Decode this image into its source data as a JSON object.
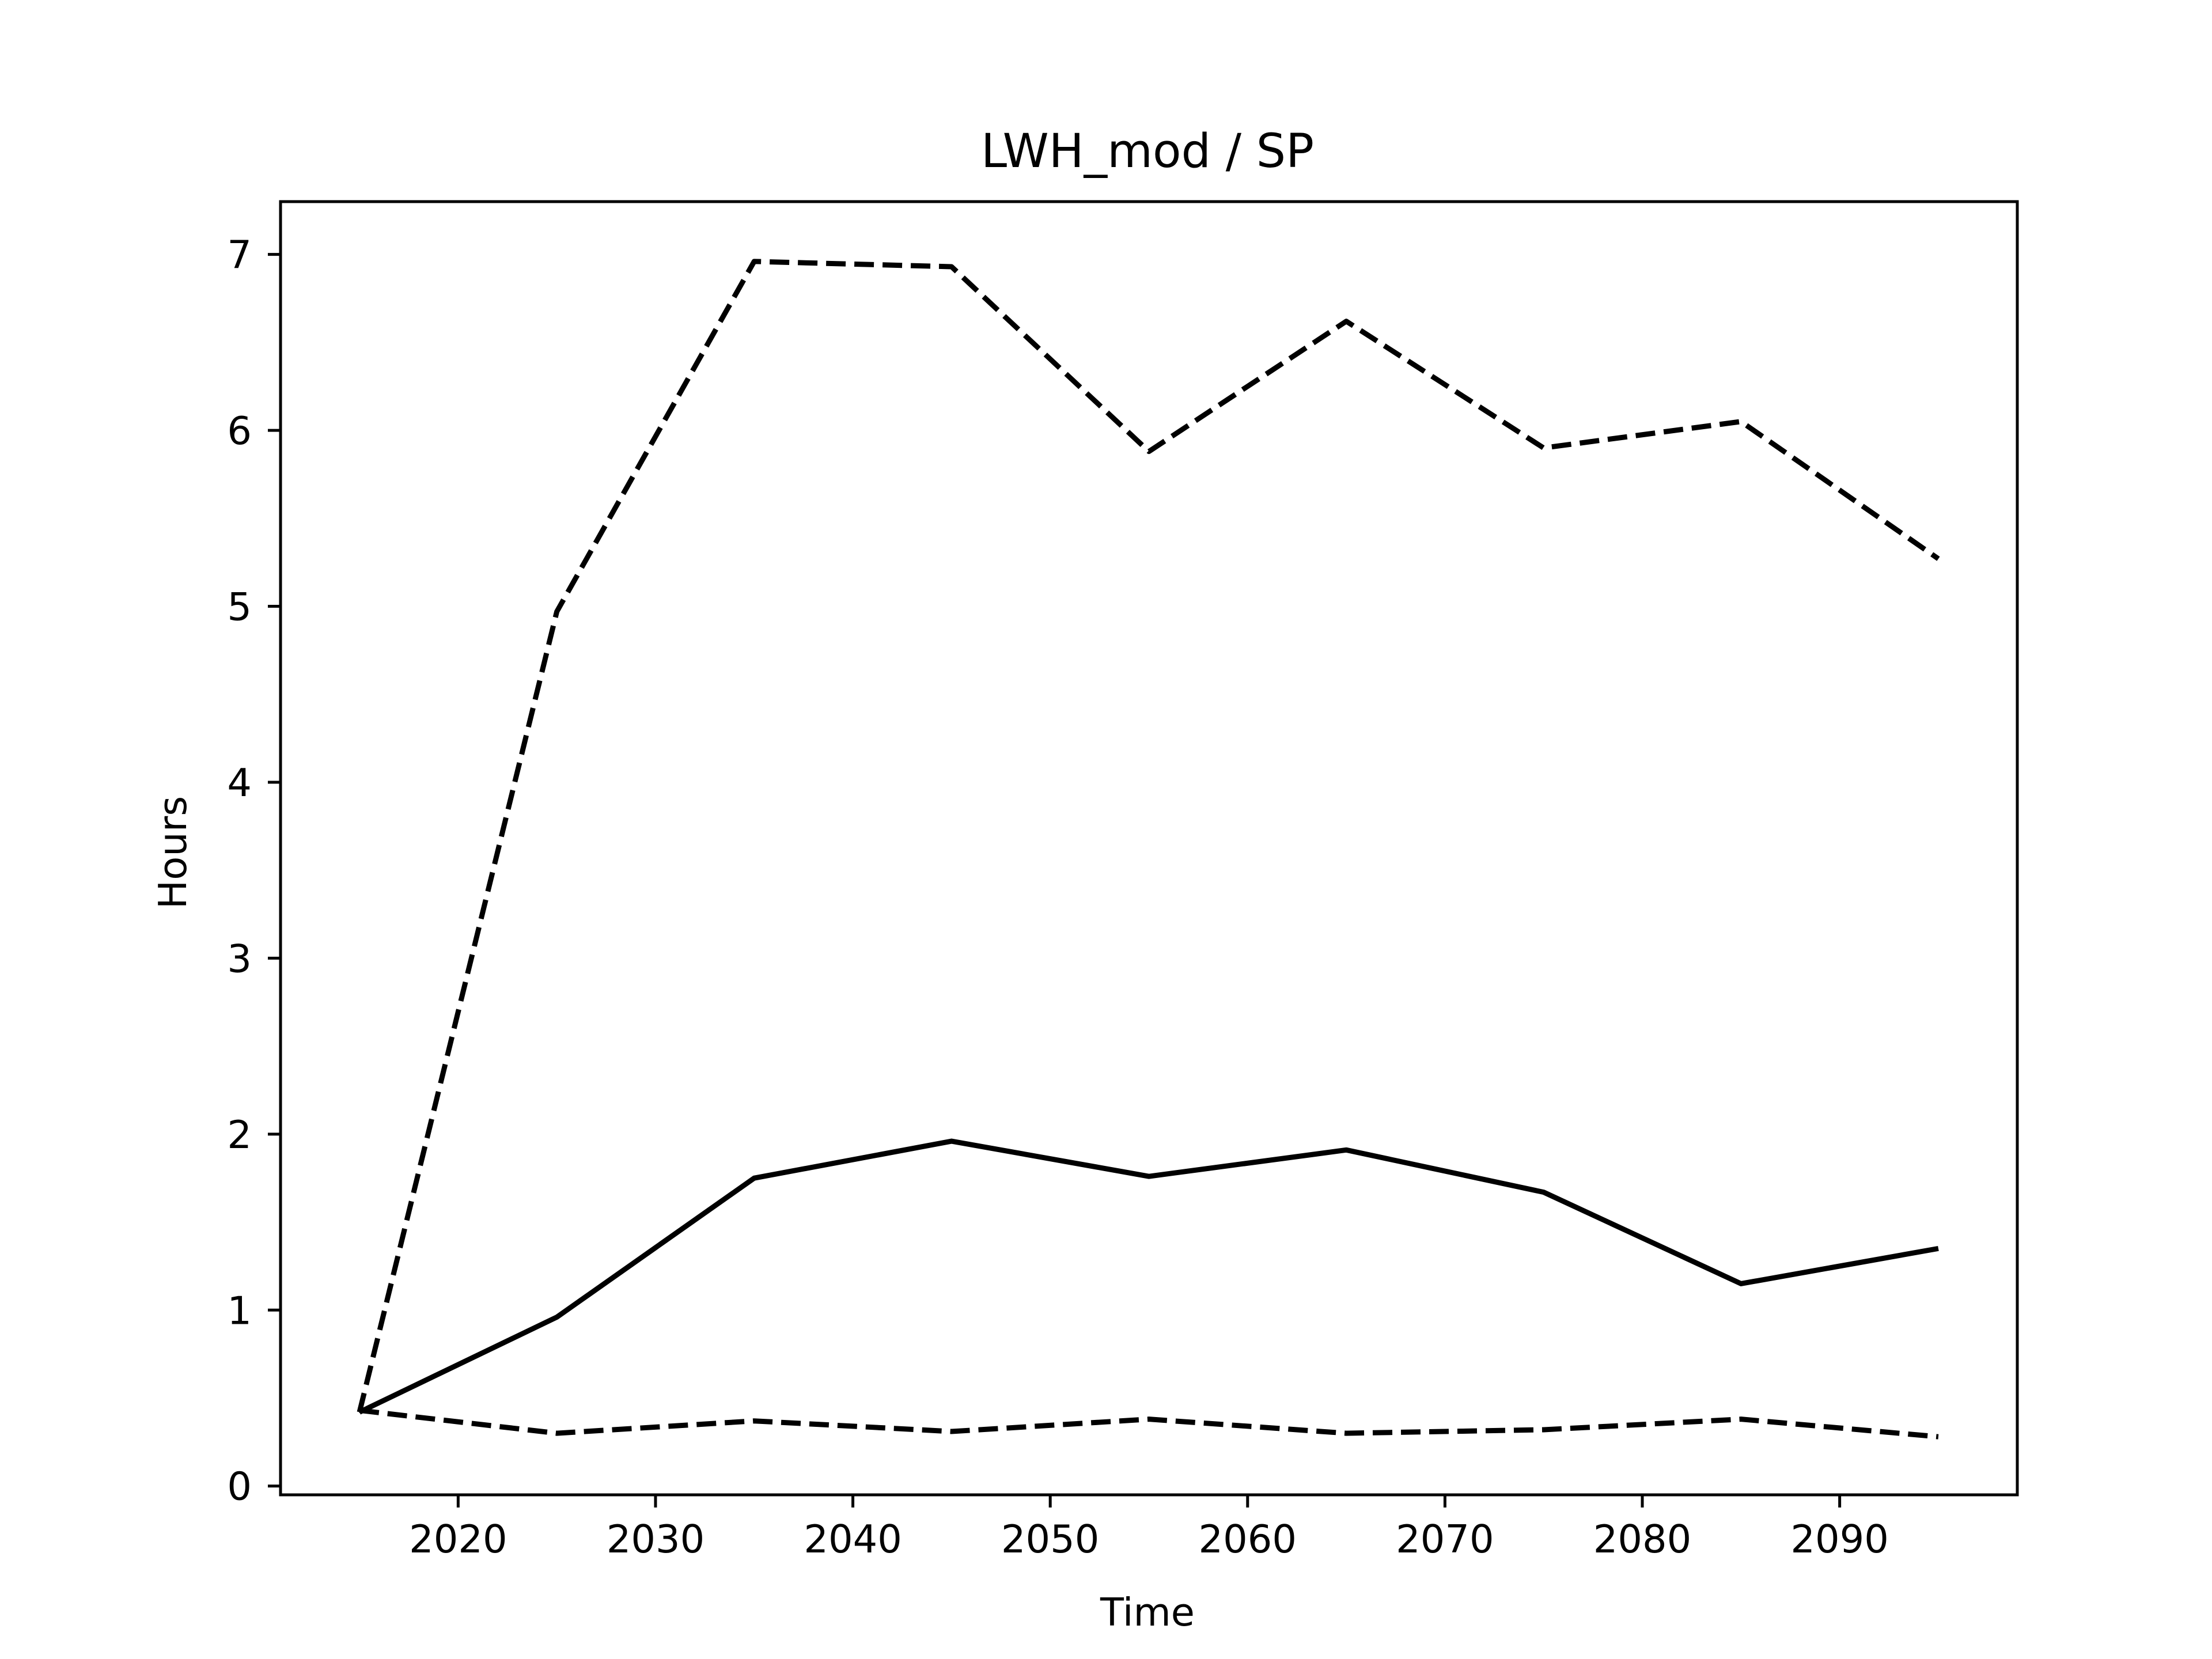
{
  "chart_data": {
    "type": "line",
    "title": "LWH_mod / SP",
    "xlabel": "Time",
    "ylabel": "Hours",
    "xlim": [
      2011,
      2099
    ],
    "ylim": [
      -0.05,
      7.3
    ],
    "xticks": [
      2020,
      2030,
      2040,
      2050,
      2060,
      2070,
      2080,
      2090
    ],
    "yticks": [
      0,
      1,
      2,
      3,
      4,
      5,
      6,
      7
    ],
    "grid": false,
    "legend": "none",
    "x": [
      2015,
      2025,
      2035,
      2045,
      2055,
      2065,
      2075,
      2085,
      2095
    ],
    "series": [
      {
        "line_style": "solid",
        "color": "#000000",
        "values": [
          0.42,
          0.96,
          1.75,
          1.96,
          1.76,
          1.91,
          1.67,
          1.15,
          1.35
        ]
      },
      {
        "line_style": "dashed",
        "color": "#000000",
        "values": [
          0.42,
          4.97,
          6.96,
          6.93,
          5.88,
          6.62,
          5.9,
          6.05,
          5.27
        ]
      },
      {
        "line_style": "dashed",
        "color": "#000000",
        "values": [
          0.43,
          0.3,
          0.37,
          0.31,
          0.38,
          0.3,
          0.32,
          0.38,
          0.28
        ]
      }
    ]
  }
}
